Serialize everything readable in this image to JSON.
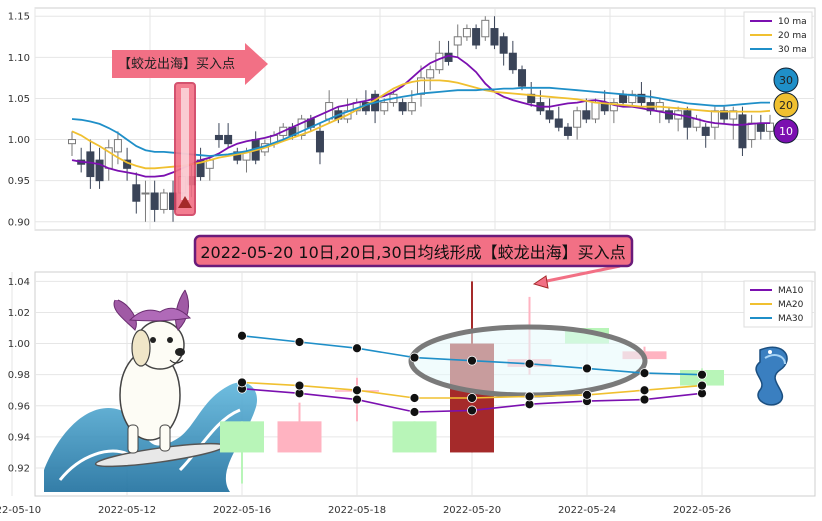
{
  "colors": {
    "ma10": "#7b10b0",
    "ma20": "#f0c030",
    "ma30": "#1f8fc8",
    "candle_up": "#7a7a7a",
    "candle_down": "#3a4458",
    "bottom_up": "#b8f5b8",
    "bottom_down": "#ffb3c1",
    "bottom_signal": "#a52a2a",
    "callout_fill": "#f27085",
    "banner_fill": "#f27085",
    "banner_border": "#6a1b7a"
  },
  "top_chart": {
    "callout_label": "【蛟龙出海】买入点",
    "legend": [
      "10 ma",
      "20 ma",
      "30 ma"
    ],
    "badges": [
      "30",
      "20",
      "10"
    ]
  },
  "banner_text": "2022-05-20 10日,20日,30日均线形成【蛟龙出海】买入点",
  "chart_data": [
    {
      "type": "line",
      "panel": "top",
      "ylim": [
        0.89,
        1.16
      ],
      "y_ticks": [
        "0.90",
        "0.95",
        "1.00",
        "1.05",
        "1.10",
        "1.15"
      ],
      "y_tick_values": [
        0.9,
        0.95,
        1.0,
        1.05,
        1.1,
        1.15
      ],
      "grid": true,
      "legend_position": "top-right",
      "candles": [
        [
          0.995,
          1.0,
          1.01,
          0.98
        ],
        [
          0.975,
          0.97,
          0.99,
          0.96
        ],
        [
          0.985,
          0.955,
          1.0,
          0.94
        ],
        [
          0.975,
          0.95,
          0.99,
          0.94
        ],
        [
          0.965,
          0.99,
          1.0,
          0.95
        ],
        [
          0.985,
          1.0,
          1.01,
          0.97
        ],
        [
          0.975,
          0.965,
          0.99,
          0.95
        ],
        [
          0.945,
          0.925,
          0.96,
          0.91
        ],
        [
          0.935,
          0.935,
          0.95,
          0.9
        ],
        [
          0.935,
          0.915,
          0.95,
          0.9
        ],
        [
          0.915,
          0.935,
          0.94,
          0.91
        ],
        [
          0.935,
          0.915,
          0.95,
          0.9
        ],
        [
          0.935,
          0.955,
          0.96,
          0.93
        ],
        [
          0.955,
          0.945,
          0.97,
          0.93
        ],
        [
          0.975,
          0.955,
          0.99,
          0.95
        ],
        [
          0.965,
          0.975,
          0.98,
          0.95
        ],
        [
          1.005,
          1.0,
          1.02,
          0.99
        ],
        [
          1.005,
          0.995,
          1.02,
          0.99
        ],
        [
          0.985,
          0.975,
          0.99,
          0.97
        ],
        [
          0.975,
          0.985,
          0.99,
          0.96
        ],
        [
          1.0,
          0.975,
          1.01,
          0.97
        ],
        [
          0.985,
          0.995,
          1.0,
          0.98
        ],
        [
          0.995,
          1.005,
          1.01,
          0.99
        ],
        [
          1.005,
          1.015,
          1.02,
          1.0
        ],
        [
          1.015,
          1.005,
          1.02,
          1.0
        ],
        [
          1.005,
          1.025,
          1.03,
          1.0
        ],
        [
          1.025,
          1.015,
          1.03,
          1.01
        ],
        [
          1.01,
          0.985,
          1.02,
          0.97
        ],
        [
          1.025,
          1.045,
          1.06,
          1.02
        ],
        [
          1.035,
          1.025,
          1.04,
          1.02
        ],
        [
          1.025,
          1.035,
          1.05,
          1.02
        ],
        [
          1.035,
          1.045,
          1.05,
          1.03
        ],
        [
          1.045,
          1.035,
          1.06,
          1.03
        ],
        [
          1.055,
          1.035,
          1.06,
          1.02
        ],
        [
          1.035,
          1.045,
          1.05,
          1.03
        ],
        [
          1.045,
          1.055,
          1.06,
          1.04
        ],
        [
          1.045,
          1.035,
          1.05,
          1.03
        ],
        [
          1.035,
          1.045,
          1.06,
          1.03
        ],
        [
          1.055,
          1.075,
          1.09,
          1.04
        ],
        [
          1.075,
          1.085,
          1.09,
          1.06
        ],
        [
          1.085,
          1.105,
          1.12,
          1.08
        ],
        [
          1.105,
          1.095,
          1.12,
          1.09
        ],
        [
          1.115,
          1.125,
          1.14,
          1.1
        ],
        [
          1.125,
          1.135,
          1.14,
          1.12
        ],
        [
          1.135,
          1.115,
          1.14,
          1.11
        ],
        [
          1.125,
          1.145,
          1.15,
          1.12
        ],
        [
          1.135,
          1.115,
          1.15,
          1.11
        ],
        [
          1.125,
          1.105,
          1.13,
          1.09
        ],
        [
          1.105,
          1.085,
          1.12,
          1.08
        ],
        [
          1.085,
          1.065,
          1.09,
          1.06
        ],
        [
          1.055,
          1.045,
          1.07,
          1.04
        ],
        [
          1.045,
          1.035,
          1.06,
          1.03
        ],
        [
          1.035,
          1.025,
          1.05,
          1.02
        ],
        [
          1.025,
          1.015,
          1.04,
          1.01
        ],
        [
          1.015,
          1.005,
          1.02,
          1.0
        ],
        [
          1.015,
          1.035,
          1.04,
          1.0
        ],
        [
          1.035,
          1.025,
          1.05,
          1.02
        ],
        [
          1.025,
          1.045,
          1.05,
          1.02
        ],
        [
          1.045,
          1.035,
          1.06,
          1.03
        ],
        [
          1.035,
          1.045,
          1.05,
          1.02
        ],
        [
          1.055,
          1.045,
          1.06,
          1.04
        ],
        [
          1.045,
          1.055,
          1.06,
          1.04
        ],
        [
          1.055,
          1.045,
          1.07,
          1.04
        ],
        [
          1.045,
          1.035,
          1.06,
          1.03
        ],
        [
          1.035,
          1.045,
          1.05,
          1.02
        ],
        [
          1.035,
          1.025,
          1.04,
          1.02
        ],
        [
          1.025,
          1.035,
          1.04,
          1.01
        ],
        [
          1.035,
          1.015,
          1.04,
          1.0
        ],
        [
          1.015,
          1.025,
          1.03,
          1.01
        ],
        [
          1.015,
          1.005,
          1.02,
          0.99
        ],
        [
          1.015,
          1.035,
          1.04,
          1.0
        ],
        [
          1.035,
          1.025,
          1.04,
          1.02
        ],
        [
          1.025,
          1.035,
          1.04,
          1.0
        ],
        [
          1.03,
          0.99,
          1.04,
          0.98
        ],
        [
          1.0,
          1.02,
          1.03,
          0.99
        ],
        [
          1.02,
          1.01,
          1.03,
          1.0
        ],
        [
          1.01,
          1.02,
          1.03,
          1.0
        ]
      ],
      "series": [
        {
          "name": "10 ma",
          "values": [
            0.975,
            0.973,
            0.972,
            0.97,
            0.965,
            0.962,
            0.96,
            0.958,
            0.955,
            0.955,
            0.956,
            0.96,
            0.965,
            0.97,
            0.975,
            0.978,
            0.983,
            0.99,
            0.995,
            0.998,
            1.0,
            1.002,
            1.005,
            1.01,
            1.015,
            1.02,
            1.025,
            1.03,
            1.035,
            1.04,
            1.042,
            1.045,
            1.047,
            1.05,
            1.053,
            1.058,
            1.065,
            1.075,
            1.085,
            1.093,
            1.098,
            1.102,
            1.1,
            1.092,
            1.082,
            1.068,
            1.058,
            1.052,
            1.048,
            1.045,
            1.042,
            1.04,
            1.04,
            1.042,
            1.044,
            1.045,
            1.047,
            1.048,
            1.046,
            1.042,
            1.04,
            1.04,
            1.038,
            1.036,
            1.034,
            1.032,
            1.03,
            1.028,
            1.025,
            1.022,
            1.02,
            1.019,
            1.018,
            1.018,
            1.019,
            1.02,
            1.02
          ]
        },
        {
          "name": "20 ma",
          "values": [
            1.01,
            1.005,
            0.998,
            0.992,
            0.985,
            0.978,
            0.972,
            0.968,
            0.965,
            0.965,
            0.966,
            0.967,
            0.968,
            0.97,
            0.972,
            0.975,
            0.978,
            0.98,
            0.982,
            0.984,
            0.987,
            0.99,
            0.994,
            0.998,
            1.002,
            1.006,
            1.01,
            1.015,
            1.02,
            1.025,
            1.03,
            1.036,
            1.042,
            1.048,
            1.055,
            1.062,
            1.067,
            1.07,
            1.072,
            1.072,
            1.072,
            1.071,
            1.069,
            1.066,
            1.063,
            1.06,
            1.058,
            1.057,
            1.056,
            1.055,
            1.054,
            1.053,
            1.052,
            1.051,
            1.05,
            1.049,
            1.047,
            1.045,
            1.044,
            1.043,
            1.042,
            1.041,
            1.04,
            1.04,
            1.04,
            1.039,
            1.038,
            1.037,
            1.036,
            1.035,
            1.034,
            1.034,
            1.034,
            1.034,
            1.034,
            1.034,
            1.035
          ]
        },
        {
          "name": "30 ma",
          "values": [
            1.025,
            1.024,
            1.022,
            1.019,
            1.014,
            1.008,
            1.0,
            0.992,
            0.987,
            0.985,
            0.985,
            0.984,
            0.983,
            0.982,
            0.981,
            0.98,
            0.981,
            0.982,
            0.984,
            0.986,
            0.989,
            0.992,
            0.996,
            1.0,
            1.005,
            1.01,
            1.015,
            1.02,
            1.025,
            1.03,
            1.034,
            1.038,
            1.042,
            1.045,
            1.048,
            1.05,
            1.052,
            1.054,
            1.056,
            1.057,
            1.058,
            1.059,
            1.06,
            1.06,
            1.06,
            1.061,
            1.061,
            1.062,
            1.062,
            1.063,
            1.063,
            1.063,
            1.063,
            1.062,
            1.061,
            1.06,
            1.059,
            1.058,
            1.057,
            1.056,
            1.055,
            1.054,
            1.053,
            1.052,
            1.05,
            1.048,
            1.046,
            1.044,
            1.043,
            1.042,
            1.041,
            1.041,
            1.042,
            1.043,
            1.044,
            1.045,
            1.045
          ]
        }
      ]
    },
    {
      "type": "bar",
      "panel": "bottom",
      "ylim": [
        0.902,
        1.046
      ],
      "y_ticks": [
        "0.92",
        "0.94",
        "0.96",
        "0.98",
        "1.00",
        "1.02",
        "1.04"
      ],
      "y_tick_values": [
        0.92,
        0.94,
        0.96,
        0.98,
        1.0,
        1.02,
        1.04
      ],
      "x_ticks": [
        "2022-05-10",
        "2022-05-12",
        "2022-05-16",
        "2022-05-18",
        "2022-05-20",
        "2022-05-24",
        "2022-05-26"
      ],
      "x_tick_days": [
        -1,
        1,
        3,
        5,
        7,
        9,
        11
      ],
      "grid": true,
      "legend_position": "top-right",
      "bars": [
        {
          "day": 3,
          "open": 0.93,
          "close": 0.95,
          "high": 0.95,
          "low": 0.91,
          "color": "up"
        },
        {
          "day": 4,
          "open": 0.95,
          "close": 0.93,
          "high": 0.962,
          "low": 0.93,
          "color": "down"
        },
        {
          "day": 5,
          "open": 0.97,
          "close": 0.97,
          "high": 0.978,
          "low": 0.95,
          "color": "down"
        },
        {
          "day": 6,
          "open": 0.93,
          "close": 0.95,
          "high": 0.95,
          "low": 0.93,
          "color": "up"
        },
        {
          "day": 7,
          "open": 0.93,
          "close": 1.0,
          "high": 1.04,
          "low": 0.93,
          "color": "signal"
        },
        {
          "day": 8,
          "open": 0.99,
          "close": 0.985,
          "high": 1.03,
          "low": 0.98,
          "color": "down"
        },
        {
          "day": 9,
          "open": 1.0,
          "close": 1.01,
          "high": 1.01,
          "low": 1.0,
          "color": "up"
        },
        {
          "day": 10,
          "open": 0.995,
          "close": 0.99,
          "high": 0.998,
          "low": 0.978,
          "color": "down"
        },
        {
          "day": 11,
          "open": 0.973,
          "close": 0.983,
          "high": 0.984,
          "low": 0.97,
          "color": "up"
        }
      ],
      "series": [
        {
          "name": "MA10",
          "x": [
            3,
            4,
            5,
            6,
            7,
            8,
            9,
            10,
            11
          ],
          "values": [
            0.971,
            0.968,
            0.964,
            0.956,
            0.957,
            0.961,
            0.963,
            0.964,
            0.968
          ]
        },
        {
          "name": "MA20",
          "x": [
            3,
            4,
            5,
            6,
            7,
            8,
            9,
            10,
            11
          ],
          "values": [
            0.975,
            0.973,
            0.97,
            0.965,
            0.965,
            0.966,
            0.967,
            0.97,
            0.973
          ]
        },
        {
          "name": "MA30",
          "x": [
            3,
            4,
            5,
            6,
            7,
            8,
            9,
            10,
            11
          ],
          "values": [
            1.005,
            1.001,
            0.997,
            0.991,
            0.989,
            0.987,
            0.984,
            0.981,
            0.98
          ]
        }
      ]
    }
  ]
}
